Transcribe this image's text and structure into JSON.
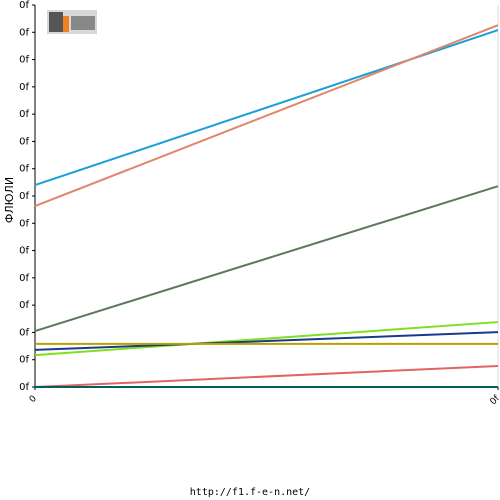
{
  "chart_data": {
    "type": "line",
    "y_label": "ФЛЮЛИ",
    "footer": "http://f1.f-e-n.net/",
    "x": [
      0,
      1
    ],
    "xlim": [
      0,
      1
    ],
    "xticks": [
      0,
      {
        "value": 1,
        "label": "0f"
      }
    ],
    "ylim": [
      0,
      14
    ],
    "yticks": [
      {
        "value": 0,
        "label": "0f"
      },
      {
        "value": 1,
        "label": "0f"
      },
      {
        "value": 2,
        "label": "0f"
      },
      {
        "value": 3,
        "label": "0f"
      },
      {
        "value": 4,
        "label": "0f"
      },
      {
        "value": 5,
        "label": "0f"
      },
      {
        "value": 6,
        "label": "0f"
      },
      {
        "value": 7,
        "label": "0f"
      },
      {
        "value": 8,
        "label": "0f"
      },
      {
        "value": 9,
        "label": "0f"
      },
      {
        "value": 10,
        "label": "0f"
      },
      {
        "value": 11,
        "label": "0f"
      },
      {
        "value": 12,
        "label": "0f"
      },
      {
        "value": 13,
        "label": "0f"
      },
      {
        "value": 14,
        "label": "0f"
      }
    ],
    "series": [
      {
        "color": "#1a9fd6",
        "values": [
          7.4,
          13.08
        ]
      },
      {
        "color": "#e0866c",
        "values": [
          6.63,
          13.26
        ]
      },
      {
        "color": "#5b7a5b",
        "values": [
          2.05,
          7.36
        ]
      },
      {
        "color": "#7fe020",
        "values": [
          1.17,
          2.38
        ]
      },
      {
        "color": "#1a3a8a",
        "values": [
          1.36,
          2.01
        ]
      },
      {
        "color": "#b8a000",
        "values": [
          1.58,
          1.58
        ]
      },
      {
        "color": "#e06464",
        "values": [
          0,
          0.77
        ]
      },
      {
        "color": "#006060",
        "values": [
          0,
          0
        ]
      }
    ]
  }
}
